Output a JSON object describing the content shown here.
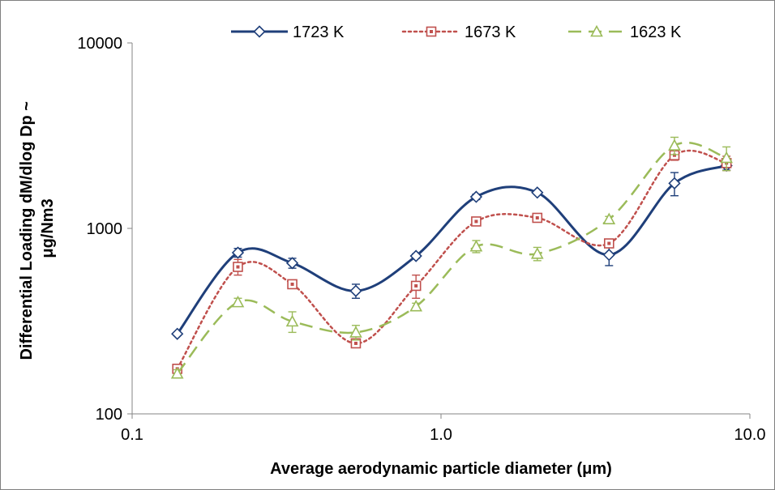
{
  "chart_data": {
    "type": "line",
    "title": "",
    "xlabel": "Average aerodynamic particle diameter (μm)",
    "ylabel_lines": [
      "Differential Loading dM/dlog Dp ~",
      "μg/Nm3"
    ],
    "x_scale": "log",
    "y_scale": "log",
    "xlim": [
      0.1,
      10.0
    ],
    "ylim": [
      100,
      10000
    ],
    "x_ticks": [
      0.1,
      1.0,
      10.0
    ],
    "x_tick_labels": [
      "0.1",
      "1.0",
      "10.0"
    ],
    "y_ticks": [
      100,
      1000,
      10000
    ],
    "y_tick_labels": [
      "100",
      "1000",
      "10000"
    ],
    "grid": false,
    "legend_position": "top-center",
    "x": [
      0.14,
      0.22,
      0.33,
      0.53,
      0.83,
      1.3,
      2.05,
      3.5,
      5.7,
      8.4
    ],
    "series": [
      {
        "name": "1723 K",
        "color": "#1f3f7a",
        "line_style": "solid",
        "marker": "diamond",
        "values": [
          270,
          740,
          650,
          460,
          710,
          1480,
          1560,
          720,
          1750,
          2180
        ],
        "error": [
          0,
          40,
          40,
          40,
          20,
          50,
          30,
          90,
          250,
          120
        ]
      },
      {
        "name": "1673 K",
        "color": "#c0504d",
        "line_style": "dotted",
        "marker": "square",
        "values": [
          175,
          620,
          500,
          240,
          490,
          1090,
          1140,
          830,
          2480,
          2250
        ],
        "error": [
          10,
          60,
          20,
          10,
          70,
          40,
          30,
          40,
          150,
          200
        ]
      },
      {
        "name": "1623 K",
        "color": "#9bbb59",
        "line_style": "dashed",
        "marker": "triangle",
        "values": [
          165,
          400,
          315,
          275,
          380,
          800,
          730,
          1120,
          2800,
          2400
        ],
        "error": [
          8,
          20,
          40,
          25,
          15,
          60,
          60,
          40,
          300,
          350
        ]
      }
    ]
  }
}
